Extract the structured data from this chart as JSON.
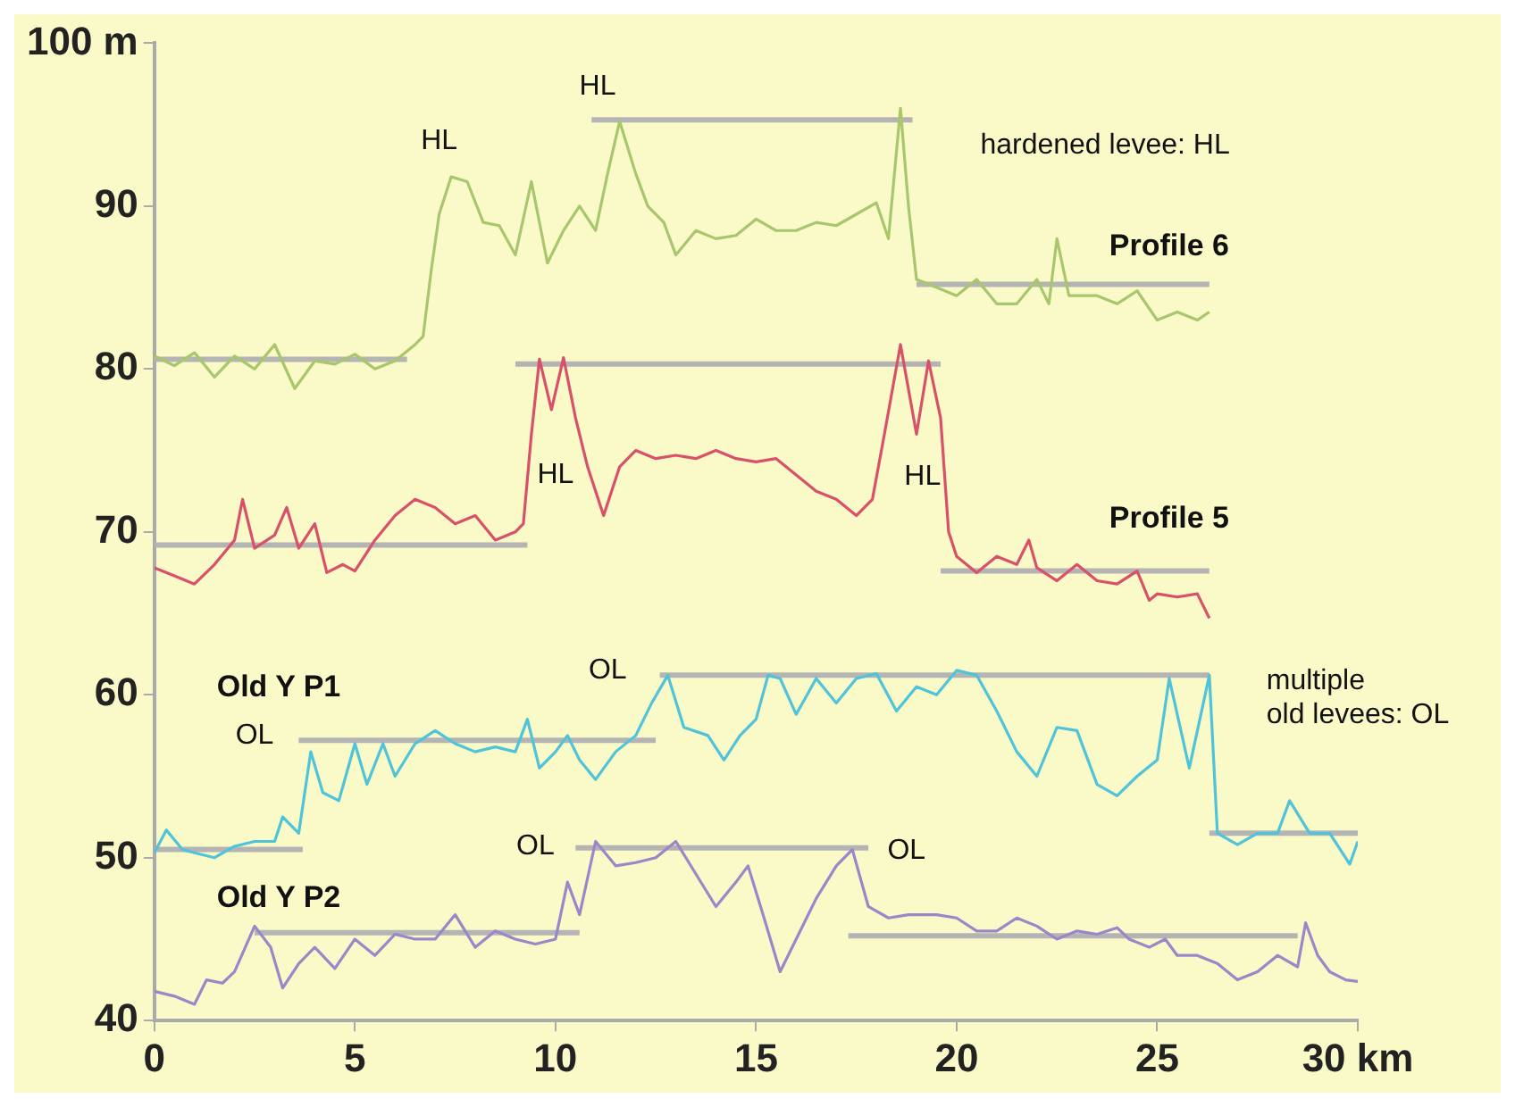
{
  "chart_data": {
    "type": "line",
    "xlim": [
      0,
      30
    ],
    "xticks": [
      0,
      5,
      10,
      15,
      20,
      25,
      {
        "value": 30,
        "label": "30 km"
      }
    ],
    "ylim": [
      40,
      100
    ],
    "yticks": [
      40,
      50,
      60,
      70,
      80,
      90,
      {
        "value": 100,
        "label": "100 m"
      }
    ],
    "series": [
      {
        "color": "#b4b4b4",
        "x": [
          0,
          6.3
        ],
        "values": [
          80.6,
          80.6
        ]
      },
      {
        "color": "#b4b4b4",
        "x": [
          10.9,
          18.9
        ],
        "values": [
          95.3,
          95.3
        ]
      },
      {
        "color": "#b4b4b4",
        "x": [
          19,
          26.3
        ],
        "values": [
          85.2,
          85.2
        ]
      },
      {
        "color": "#b4b4b4",
        "x": [
          0,
          9.3
        ],
        "values": [
          69.2,
          69.2
        ]
      },
      {
        "color": "#b4b4b4",
        "x": [
          9,
          19.6
        ],
        "values": [
          80.3,
          80.3
        ]
      },
      {
        "color": "#b4b4b4",
        "x": [
          19.6,
          26.3
        ],
        "values": [
          67.6,
          67.6
        ]
      },
      {
        "color": "#b4b4b4",
        "x": [
          0,
          3.7
        ],
        "values": [
          50.5,
          50.5
        ]
      },
      {
        "color": "#b4b4b4",
        "x": [
          3.6,
          12.5
        ],
        "values": [
          57.2,
          57.2
        ]
      },
      {
        "color": "#b4b4b4",
        "x": [
          12.6,
          26.3
        ],
        "values": [
          61.2,
          61.2
        ]
      },
      {
        "color": "#b4b4b4",
        "x": [
          26.3,
          30
        ],
        "values": [
          51.5,
          51.5
        ]
      },
      {
        "color": "#b4b4b4",
        "x": [
          2.5,
          10.6
        ],
        "values": [
          45.4,
          45.4
        ]
      },
      {
        "color": "#b4b4b4",
        "x": [
          10.5,
          17.8
        ],
        "values": [
          50.6,
          50.6
        ]
      },
      {
        "color": "#b4b4b4",
        "x": [
          17.3,
          28.5
        ],
        "values": [
          45.2,
          45.2
        ]
      },
      {
        "name": "Profile 6",
        "color": "#a8c66c",
        "x": [
          0,
          0.5,
          1,
          1.5,
          2,
          2.5,
          3,
          3.5,
          4,
          4.5,
          5,
          5.5,
          6,
          6.5,
          6.7,
          6.9,
          7.1,
          7.4,
          7.8,
          8.2,
          8.6,
          9,
          9.4,
          9.8,
          10.2,
          10.6,
          11,
          11.3,
          11.6,
          12,
          12.3,
          12.7,
          13,
          13.5,
          14,
          14.5,
          15,
          15.5,
          16,
          16.5,
          17,
          17.5,
          18,
          18.3,
          18.6,
          18.8,
          19,
          19.5,
          20,
          20.5,
          21,
          21.5,
          22,
          22.3,
          22.5,
          22.8,
          23.5,
          24,
          24.5,
          25,
          25.5,
          26,
          26.3
        ],
        "values": [
          80.8,
          80.2,
          81,
          79.5,
          80.8,
          80,
          81.5,
          78.8,
          80.5,
          80.3,
          80.9,
          80,
          80.5,
          81.5,
          82,
          86,
          89.5,
          91.8,
          91.5,
          89,
          88.8,
          87,
          91.5,
          86.5,
          88.5,
          90,
          88.5,
          92,
          95.2,
          92,
          90,
          89,
          87,
          88.5,
          88,
          88.2,
          89.2,
          88.5,
          88.5,
          89,
          88.8,
          89.5,
          90.2,
          88,
          96,
          90,
          85.5,
          85,
          84.5,
          85.5,
          84,
          84,
          85.5,
          84,
          88,
          84.5,
          84.5,
          84,
          84.8,
          83,
          83.5,
          83,
          83.5
        ]
      },
      {
        "name": "Profile 5",
        "color": "#d9506a",
        "x": [
          0,
          0.5,
          1,
          1.5,
          2,
          2.2,
          2.5,
          3,
          3.3,
          3.6,
          4,
          4.3,
          4.7,
          5,
          5.5,
          6,
          6.5,
          7,
          7.5,
          8,
          8.5,
          9,
          9.2,
          9.4,
          9.6,
          9.9,
          10.2,
          10.5,
          10.8,
          11.2,
          11.6,
          12,
          12.5,
          13,
          13.5,
          14,
          14.5,
          15,
          15.5,
          16,
          16.5,
          17,
          17.5,
          17.9,
          18.2,
          18.6,
          19,
          19.3,
          19.6,
          19.8,
          20,
          20.5,
          21,
          21.5,
          21.8,
          22,
          22.5,
          23,
          23.5,
          24,
          24.5,
          24.8,
          25,
          25.5,
          26,
          26.3
        ],
        "values": [
          67.8,
          67.3,
          66.8,
          68,
          69.5,
          72,
          69,
          69.8,
          71.5,
          69,
          70.5,
          67.5,
          68,
          67.6,
          69.5,
          71,
          72,
          71.5,
          70.5,
          71,
          69.5,
          70,
          70.5,
          76,
          80.6,
          77.5,
          80.7,
          77,
          74,
          71,
          74,
          75,
          74.5,
          74.7,
          74.5,
          75,
          74.5,
          74.3,
          74.5,
          73.5,
          72.5,
          72,
          71,
          72,
          76,
          81.5,
          76,
          80.5,
          77,
          70,
          68.5,
          67.5,
          68.5,
          68,
          69.5,
          67.8,
          67,
          68,
          67,
          66.8,
          67.6,
          65.8,
          66.2,
          66,
          66.2,
          64.7
        ]
      },
      {
        "name": "Old Y P1",
        "color": "#4fc3d9",
        "x": [
          0,
          0.3,
          0.7,
          1,
          1.5,
          2,
          2.5,
          3,
          3.2,
          3.6,
          3.9,
          4.2,
          4.6,
          5,
          5.3,
          5.7,
          6,
          6.5,
          7,
          7.5,
          8,
          8.5,
          9,
          9.3,
          9.6,
          10,
          10.3,
          10.6,
          11,
          11.5,
          12,
          12.4,
          12.8,
          13.2,
          13.8,
          14.2,
          14.6,
          15,
          15.3,
          15.6,
          16,
          16.5,
          17,
          17.5,
          18,
          18.5,
          19,
          19.5,
          20,
          20.5,
          21,
          21.5,
          22,
          22.5,
          23,
          23.5,
          24,
          24.5,
          25,
          25.3,
          25.8,
          26.3,
          26.5,
          27,
          27.5,
          28,
          28.3,
          28.8,
          29.3,
          29.8,
          30
        ],
        "values": [
          50.3,
          51.7,
          50.5,
          50.3,
          50,
          50.7,
          51,
          51,
          52.5,
          51.5,
          56.5,
          54,
          53.5,
          57,
          54.5,
          57,
          55,
          57,
          57.8,
          57,
          56.5,
          56.8,
          56.5,
          58.5,
          55.5,
          56.5,
          57.5,
          56,
          54.8,
          56.5,
          57.5,
          59.5,
          61.2,
          58,
          57.5,
          56,
          57.5,
          58.5,
          61.2,
          61,
          58.8,
          61,
          59.5,
          61,
          61.3,
          59,
          60.5,
          60,
          61.5,
          61.2,
          59,
          56.5,
          55,
          58,
          57.8,
          54.5,
          53.8,
          55,
          56,
          61,
          55.5,
          61.2,
          51.5,
          50.8,
          51.5,
          51.5,
          53.5,
          51.5,
          51.5,
          49.6,
          51
        ]
      },
      {
        "name": "Old Y P2",
        "color": "#9b86c9",
        "x": [
          0,
          0.5,
          1,
          1.3,
          1.7,
          2,
          2.5,
          2.9,
          3.2,
          3.6,
          4,
          4.5,
          5,
          5.5,
          6,
          6.5,
          7,
          7.5,
          8,
          8.5,
          9,
          9.5,
          10,
          10.3,
          10.6,
          11,
          11.5,
          12,
          12.5,
          13,
          13.5,
          14,
          14.5,
          14.8,
          15.2,
          15.6,
          16,
          16.5,
          17,
          17.4,
          17.8,
          18.3,
          18.8,
          19.5,
          20,
          20.5,
          21,
          21.5,
          22,
          22.5,
          23,
          23.5,
          24,
          24.3,
          24.8,
          25.2,
          25.5,
          26,
          26.5,
          27,
          27.5,
          28,
          28.5,
          28.7,
          29,
          29.3,
          29.7,
          30
        ],
        "values": [
          41.8,
          41.5,
          41,
          42.5,
          42.3,
          43,
          45.8,
          44.5,
          42,
          43.5,
          44.5,
          43.2,
          45,
          44,
          45.3,
          45,
          45,
          46.5,
          44.5,
          45.5,
          45,
          44.7,
          45,
          48.5,
          46.5,
          51,
          49.5,
          49.7,
          50,
          51,
          49,
          47,
          48.5,
          49.5,
          46.3,
          43,
          45,
          47.5,
          49.5,
          50.5,
          47,
          46.3,
          46.5,
          46.5,
          46.3,
          45.5,
          45.5,
          46.3,
          45.8,
          45,
          45.5,
          45.3,
          45.7,
          45,
          44.5,
          45,
          44,
          44,
          43.5,
          42.5,
          43,
          44,
          43.3,
          46,
          44,
          43,
          42.5,
          42.4
        ]
      }
    ],
    "annotations": [
      "HL",
      "HL",
      "hardened levee: HL",
      "HL",
      "HL",
      "OL",
      "OL",
      "multiple\nold levees: OL",
      "OL",
      "OL"
    ]
  }
}
